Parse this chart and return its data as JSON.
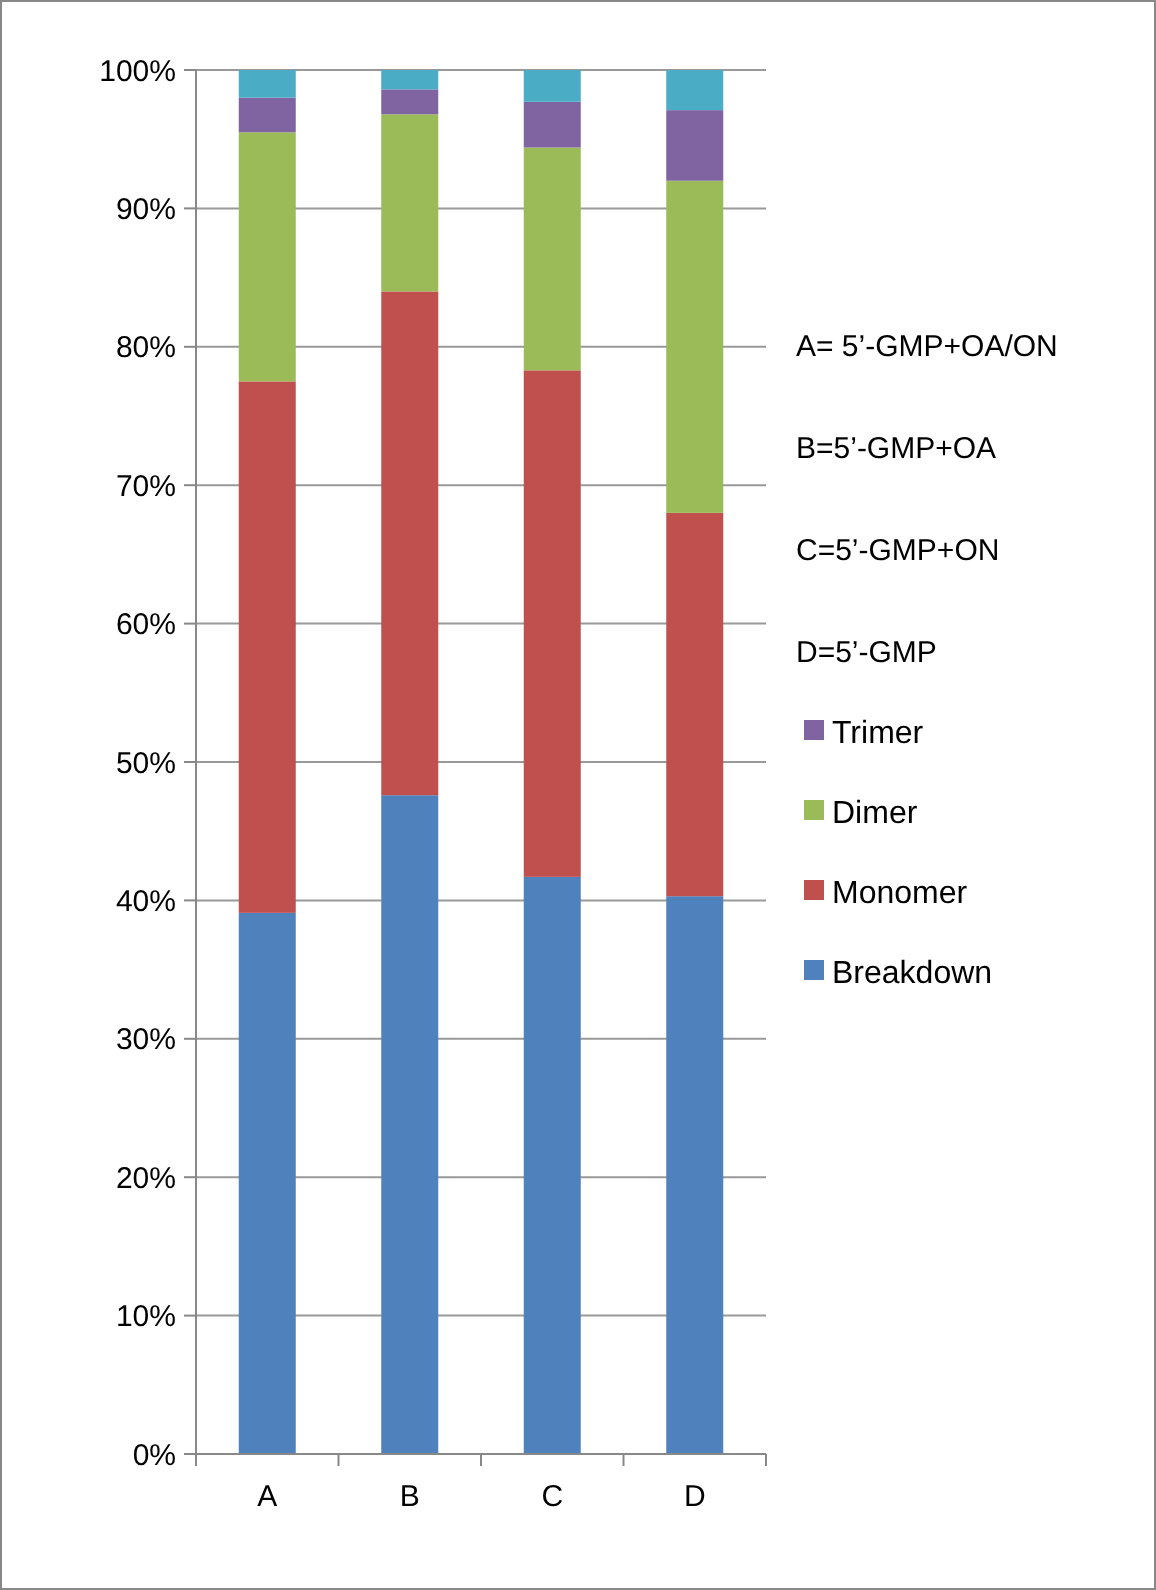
{
  "chart_data": {
    "type": "bar",
    "stacked": true,
    "categories": [
      "A",
      "B",
      "C",
      "D"
    ],
    "series": [
      {
        "name": "Breakdown",
        "color": "#4f81bd",
        "values": [
          39.1,
          47.6,
          41.7,
          40.3
        ]
      },
      {
        "name": "Monomer",
        "color": "#c0504d",
        "values": [
          38.4,
          36.4,
          36.6,
          27.7
        ]
      },
      {
        "name": "Dimer",
        "color": "#9bbb59",
        "values": [
          18.0,
          12.8,
          16.1,
          24.0
        ]
      },
      {
        "name": "Trimer",
        "color": "#8064a2",
        "values": [
          2.5,
          1.8,
          3.3,
          5.1
        ]
      },
      {
        "color": "#4bacc6",
        "values": [
          2.0,
          1.4,
          2.3,
          2.9
        ]
      }
    ],
    "ylim": [
      0,
      100
    ],
    "yticks": [
      {
        "value": 0,
        "label": "0%"
      },
      {
        "value": 10,
        "label": "10%"
      },
      {
        "value": 20,
        "label": "20%"
      },
      {
        "value": 30,
        "label": "30%"
      },
      {
        "value": 40,
        "label": "40%"
      },
      {
        "value": 50,
        "label": "50%"
      },
      {
        "value": 60,
        "label": "60%"
      },
      {
        "value": 70,
        "label": "70%"
      },
      {
        "value": 80,
        "label": "80%"
      },
      {
        "value": 90,
        "label": "90%"
      },
      {
        "value": 100,
        "label": "100%"
      }
    ],
    "grid": "y",
    "legend": "right",
    "annotations": [
      "A= 5’-GMP+OA/ON",
      "B=5’-GMP+OA",
      "C=5’-GMP+ON",
      "D=5’-GMP"
    ]
  }
}
